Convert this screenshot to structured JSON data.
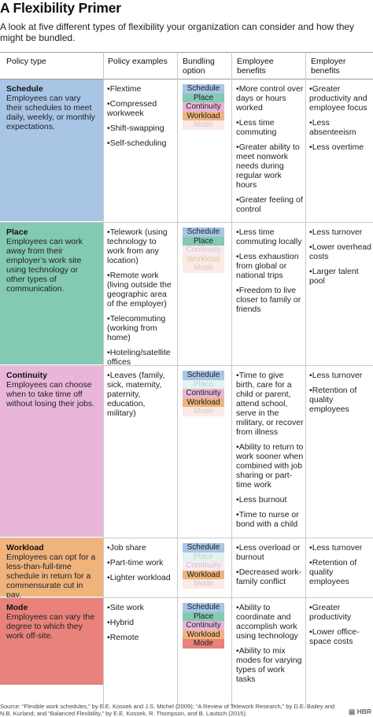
{
  "title": "A Flexibility Primer",
  "subtitle": "A look at five different types of flexibility your organization can consider and how they might be bundled.",
  "headers": {
    "policy_type": "Policy type",
    "policy_examples": "Policy examples",
    "bundling_option": "Bundling option",
    "employee_benefits": "Employee benefits",
    "employer_benefits": "Employer benefits"
  },
  "bundle_labels": [
    "Schedule",
    "Place",
    "Continuity",
    "Workload",
    "Mode"
  ],
  "colors": {
    "schedule": "#a9c5e6",
    "place": "#83c9b3",
    "continuity": "#e9b6d9",
    "workload": "#efb37c",
    "mode": "#e8827a"
  },
  "rows": [
    {
      "name": "Schedule",
      "desc": "Employees can vary their schedules to meet daily, weekly, or monthly expectations.",
      "examples": [
        "Flextime",
        "Compressed workweek",
        "Shift-swapping",
        "Self-scheduling"
      ],
      "bundles_active": [
        true,
        true,
        true,
        true,
        false
      ],
      "employee": [
        "More control over days or hours worked",
        "Less time commuting",
        "Greater ability to meet nonwork needs during regular work hours",
        "Greater feeling of control"
      ],
      "employer": [
        "Greater productivity and employee focus",
        "Less absenteeism",
        "Less overtime"
      ]
    },
    {
      "name": "Place",
      "desc": "Employees can work away from their employer’s work site using technology or other types of communication.",
      "examples": [
        "Telework (using technology to work from any location)",
        "Remote work (living outside the geographic area of the employer)",
        "Telecommuting (working from home)",
        "Hoteling/satellite offices"
      ],
      "bundles_active": [
        true,
        true,
        false,
        false,
        false
      ],
      "employee": [
        "Less time commuting locally",
        "Less exhaustion from global or national trips",
        "Freedom to live closer to family or friends"
      ],
      "employer": [
        "Less turnover",
        "Lower overhead costs",
        "Larger talent pool"
      ]
    },
    {
      "name": "Continuity",
      "desc": "Employees can choose when to take time off without losing their jobs.",
      "examples": [
        "Leaves (family, sick, maternity, paternity, education, military)"
      ],
      "bundles_active": [
        true,
        false,
        true,
        true,
        false
      ],
      "employee": [
        "Time to give birth, care for a child or parent, attend school, serve in the military, or recover from illness",
        "Ability to return to work sooner when combined with job sharing or part-time work",
        "Less burnout",
        "Time to nurse or bond with a child"
      ],
      "employer": [
        "Less turnover",
        "Retention of quality employees"
      ]
    },
    {
      "name": "Workload",
      "desc": "Employees can opt for a less-than-full-time schedule in return for a commensurate cut in pay.",
      "examples": [
        "Job share",
        "Part-time work",
        "Lighter workload"
      ],
      "bundles_active": [
        true,
        false,
        false,
        true,
        false
      ],
      "employee": [
        "Less overload or burnout",
        "Decreased work-family conflict"
      ],
      "employer": [
        "Less turnover",
        "Retention of quality employees"
      ]
    },
    {
      "name": "Mode",
      "desc": "Employees can vary the degree to which they work off-site.",
      "examples": [
        "Site work",
        "Hybrid",
        "Remote"
      ],
      "bundles_active": [
        true,
        true,
        true,
        true,
        true
      ],
      "employee": [
        "Ability to coordinate and accomplish work using technology",
        "Ability to mix modes for varying types of work tasks"
      ],
      "employer": [
        "Greater productivity",
        "Lower office-space costs"
      ]
    }
  ],
  "source": "Source: “Flexible work schedules,” by E.E. Kossek and J.S. Michel (2009); “A Review of Telework Research,” by D.E. Bailey and N.B. Kurland; and “Balanced Flexibility,” by E.E. Kossek, R. Thompson, and B. Lautsch (2015).",
  "brand": "HBR"
}
